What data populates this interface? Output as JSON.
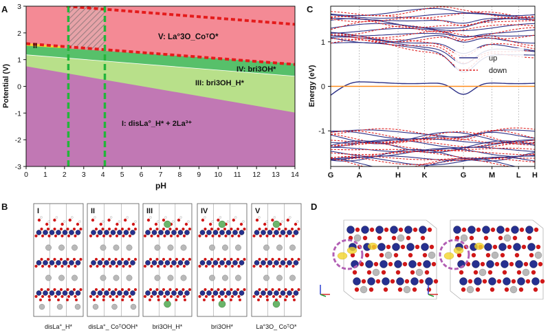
{
  "panels": {
    "a": {
      "letter": "A"
    },
    "b": {
      "letter": "B"
    },
    "c": {
      "letter": "C"
    },
    "d": {
      "letter": "D"
    }
  },
  "chart_data": [
    {
      "type": "area",
      "panel": "A",
      "xlabel": "pH",
      "ylabel": "Potential (V)",
      "xlim": [
        0,
        14
      ],
      "ylim": [
        -3,
        3
      ],
      "x_ticks": [
        0,
        1,
        2,
        3,
        4,
        5,
        6,
        7,
        8,
        9,
        10,
        11,
        12,
        13,
        14
      ],
      "y_ticks": [
        -3,
        -2,
        -1,
        0,
        1,
        2,
        3
      ],
      "grid": false,
      "regions": [
        {
          "name": "I: disLa°_H* + 2La³⁺",
          "color": "#c178b4",
          "upper_boundary": [
            [
              0,
              0.75
            ],
            [
              14,
              -0.98
            ]
          ]
        },
        {
          "name": "III: bri3OH_H*",
          "color": "#b8e08a",
          "upper_boundary": [
            [
              0,
              1.18
            ],
            [
              14,
              0.38
            ]
          ]
        },
        {
          "name": "IV: bri3OH*",
          "color": "#57c06a",
          "upper_boundary": [
            [
              0,
              1.52
            ],
            [
              14,
              0.85
            ]
          ]
        },
        {
          "name": "II",
          "color": "#f7d433",
          "upper_boundary": [
            [
              0,
              1.62
            ],
            [
              1.8,
              1.5
            ]
          ]
        },
        {
          "name": "V: La°3O_CoᵀO*",
          "color": "#f48a95",
          "upper_boundary": [
            [
              0,
              3
            ],
            [
              14,
              3
            ]
          ]
        }
      ],
      "red_dashed_lines": [
        [
          [
            2.1,
            3.0
          ],
          [
            14,
            2.32
          ]
        ],
        [
          [
            0,
            1.6
          ],
          [
            14,
            0.82
          ]
        ]
      ],
      "green_dashed_lines_x": [
        2.2,
        4.1
      ],
      "hatched_region_x": [
        2.2,
        4.1
      ],
      "region_labels": {
        "I": "I: disLa°_H* + 2La³⁺",
        "II": "II",
        "III": "III: bri3OH_H*",
        "IV": "IV: bri3OH*",
        "V": "V: La°3O_CoᵀO*"
      }
    },
    {
      "type": "line",
      "panel": "C",
      "ylabel": "Energy (eV)",
      "ylim": [
        -1.8,
        1.8
      ],
      "y_ticks": [
        -1,
        0,
        1
      ],
      "k_points": [
        "G",
        "A",
        "H",
        "K",
        "G",
        "M",
        "L",
        "H"
      ],
      "k_positions": [
        0,
        0.14,
        0.33,
        0.46,
        0.65,
        0.79,
        0.92,
        1.0
      ],
      "fermi_level": 0,
      "legend": [
        {
          "name": "up",
          "style": "solid",
          "color": "#2b2f86"
        },
        {
          "name": "down",
          "style": "dashed",
          "color": "#e02323"
        }
      ],
      "legend_position": "right",
      "grid": false
    }
  ],
  "panel_b": {
    "structures": [
      {
        "numeral": "I",
        "caption": "disLa°_H*"
      },
      {
        "numeral": "II",
        "caption": "disLa°_ CoᵀOOH*"
      },
      {
        "numeral": "III",
        "caption": "bri3OH_H*"
      },
      {
        "numeral": "IV",
        "caption": "bri3OH*"
      },
      {
        "numeral": "V",
        "caption": "La°3O_ CoᵀO*"
      }
    ]
  },
  "colors": {
    "cobalt": "#26308f",
    "oxygen": "#d01818",
    "lanthanum": "#b9b9b9",
    "hydrogen": "#f2f2f2",
    "surface_ion": "#6ab56a",
    "charge_density": "#f3d52a",
    "highlight_circle": "#b25fb4"
  }
}
